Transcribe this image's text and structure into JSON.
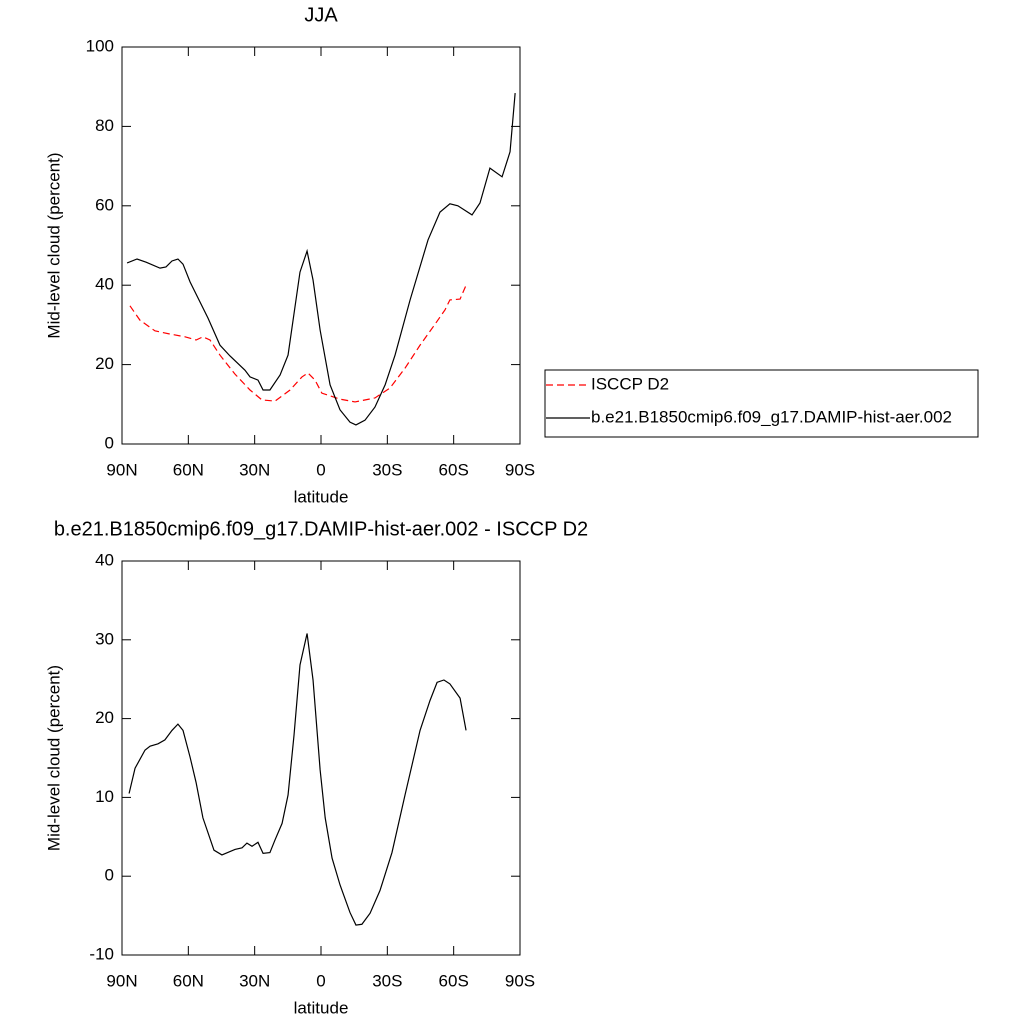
{
  "chart_data": [
    {
      "type": "line",
      "title": "JJA",
      "xlabel": "latitude",
      "ylabel": "Mid-level cloud (percent)",
      "xlim": [
        90,
        -90
      ],
      "xticks": [
        {
          "value": 90,
          "label": "90N"
        },
        {
          "value": 60,
          "label": "60N"
        },
        {
          "value": 30,
          "label": "30N"
        },
        0,
        {
          "value": -30,
          "label": "30S"
        },
        {
          "value": -60,
          "label": "60S"
        },
        {
          "value": -90,
          "label": "90S"
        }
      ],
      "ylim": [
        0,
        100
      ],
      "yticks": [
        0,
        20,
        40,
        60,
        80,
        100
      ],
      "legend": "right",
      "series": [
        {
          "name": "ISCCP D2",
          "color": "#ff0000",
          "dash": true,
          "x": [
            86.4,
            81.9,
            75.1,
            68.3,
            61.5,
            56.5,
            53.4,
            50.2,
            45.7,
            38.9,
            32.1,
            26.7,
            20.8,
            14.0,
            8.6,
            5.9,
            2.7,
            -0.4,
            -8.6,
            -15.4,
            -24.4,
            -31.2,
            -38.0,
            -44.8,
            -51.6,
            -56.1,
            -58.3,
            -62.9,
            -65.6
          ],
          "values": [
            34.8,
            31.2,
            28.5,
            27.7,
            27.0,
            26.2,
            27.0,
            26.2,
            22.4,
            17.6,
            13.6,
            11.1,
            10.8,
            13.6,
            16.9,
            17.9,
            16.1,
            12.8,
            11.3,
            10.6,
            11.6,
            14.1,
            19.1,
            24.9,
            30.2,
            33.8,
            36.3,
            36.5,
            40.0
          ]
        },
        {
          "name": "b.e21.B1850cmip6.f09_g17.DAMIP-hist-aer.002",
          "color": "#000000",
          "dash": false,
          "x": [
            87.7,
            83.2,
            79.1,
            72.8,
            70.1,
            67.4,
            64.7,
            62.4,
            59.2,
            51.1,
            45.7,
            41.2,
            34.4,
            32.1,
            28.5,
            26.2,
            23.1,
            18.5,
            14.9,
            9.5,
            6.3,
            3.6,
            0.4,
            -4.1,
            -8.6,
            -13.1,
            -15.8,
            -19.9,
            -24.4,
            -29.0,
            -33.5,
            -40.3,
            -48.4,
            -53.8,
            -58.3,
            -61.9,
            -68.3,
            -71.9,
            -76.4,
            -81.9,
            -85.5,
            -87.8
          ],
          "values": [
            45.6,
            46.6,
            45.8,
            44.3,
            44.6,
            46.1,
            46.6,
            45.3,
            40.8,
            31.7,
            24.9,
            22.2,
            18.6,
            16.9,
            16.1,
            13.6,
            13.6,
            17.4,
            22.4,
            43.3,
            48.6,
            41.3,
            28.7,
            14.9,
            8.6,
            5.5,
            4.8,
            6.0,
            9.3,
            14.9,
            22.4,
            36.3,
            51.4,
            58.4,
            60.5,
            60.0,
            57.7,
            60.7,
            69.5,
            67.3,
            73.6,
            88.4
          ]
        }
      ]
    },
    {
      "type": "line",
      "title": "b.e21.B1850cmip6.f09_g17.DAMIP-hist-aer.002 - ISCCP D2",
      "xlabel": "latitude",
      "ylabel": "Mid-level cloud (percent)",
      "xlim": [
        90,
        -90
      ],
      "xticks": [
        {
          "value": 90,
          "label": "90N"
        },
        {
          "value": 60,
          "label": "60N"
        },
        {
          "value": 30,
          "label": "30N"
        },
        0,
        {
          "value": -30,
          "label": "30S"
        },
        {
          "value": -60,
          "label": "60S"
        },
        {
          "value": -90,
          "label": "90S"
        }
      ],
      "ylim": [
        -10,
        40
      ],
      "yticks": [
        -10,
        0,
        10,
        20,
        30,
        40
      ],
      "series": [
        {
          "color": "#000000",
          "dash": false,
          "x": [
            86.8,
            84.1,
            79.6,
            77.3,
            73.7,
            70.6,
            67.4,
            64.7,
            62.4,
            59.2,
            56.5,
            53.4,
            48.4,
            44.8,
            38.9,
            35.7,
            33.5,
            31.2,
            28.5,
            26.2,
            23.1,
            20.8,
            17.6,
            14.9,
            12.2,
            9.5,
            6.3,
            3.6,
            0.4,
            -1.9,
            -5.0,
            -8.6,
            -13.1,
            -15.8,
            -18.5,
            -22.2,
            -26.7,
            -32.1,
            -38.0,
            -44.8,
            -49.3,
            -52.5,
            -55.6,
            -58.3,
            -62.9,
            -65.6
          ],
          "values": [
            10.5,
            13.7,
            16.0,
            16.5,
            16.8,
            17.3,
            18.5,
            19.3,
            18.5,
            15.1,
            11.9,
            7.4,
            3.3,
            2.7,
            3.4,
            3.6,
            4.2,
            3.8,
            4.3,
            2.9,
            3.0,
            4.6,
            6.7,
            10.3,
            17.9,
            26.8,
            30.8,
            24.9,
            13.5,
            7.4,
            2.3,
            -1.1,
            -4.6,
            -6.2,
            -6.1,
            -4.7,
            -1.8,
            3.0,
            10.3,
            18.5,
            22.3,
            24.6,
            24.9,
            24.4,
            22.6,
            18.5
          ]
        }
      ]
    }
  ]
}
